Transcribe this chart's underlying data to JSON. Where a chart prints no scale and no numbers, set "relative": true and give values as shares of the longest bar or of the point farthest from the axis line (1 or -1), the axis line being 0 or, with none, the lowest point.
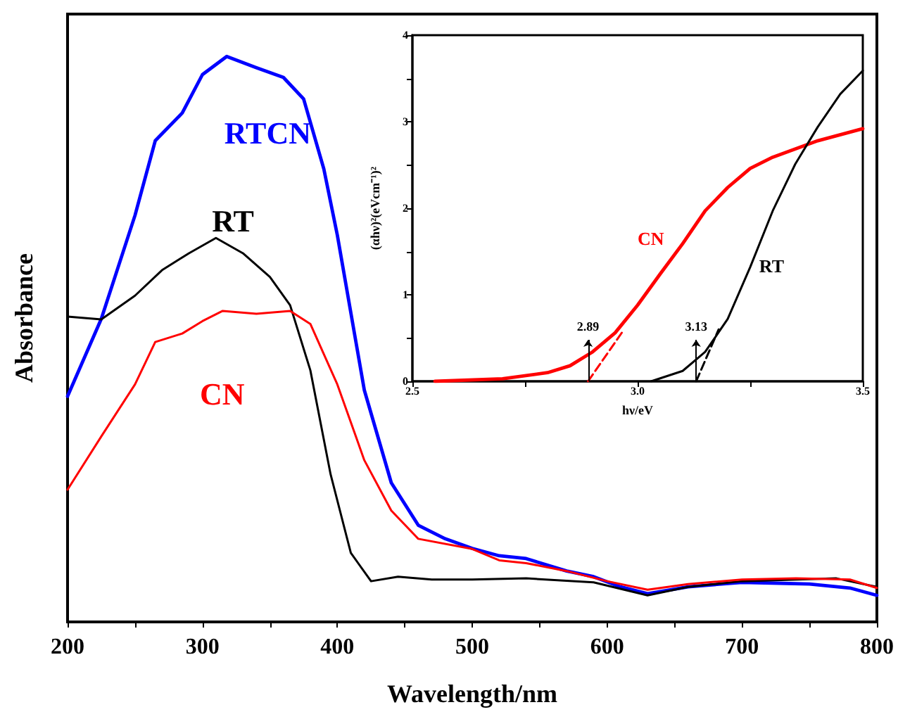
{
  "chart_data": [
    {
      "type": "line",
      "xlabel": "Wavelength/nm",
      "ylabel": "Absorbance",
      "relative": true,
      "tick_labels": "x",
      "xlim": [
        200,
        800
      ],
      "xticks": [
        200,
        {
          "value": 250,
          "label": null
        },
        300,
        {
          "value": 350,
          "label": null
        },
        400,
        {
          "value": 450,
          "label": null
        },
        500,
        {
          "value": 550,
          "label": null
        },
        600,
        {
          "value": 650,
          "label": null
        },
        700,
        {
          "value": 750,
          "label": null
        },
        800
      ],
      "legend": false,
      "marker": "none",
      "series": [
        {
          "name": "RTCN",
          "color": "#0000ff",
          "x": [
            200,
            225,
            250,
            265,
            285,
            300,
            318,
            340,
            360,
            375,
            390,
            400,
            420,
            440,
            460,
            480,
            500,
            520,
            540,
            570,
            590,
            610,
            630,
            660,
            700,
            750,
            780,
            800
          ],
          "values": [
            0.399,
            0.536,
            0.719,
            0.851,
            0.9,
            0.968,
            1,
            0.98,
            0.963,
            0.925,
            0.801,
            0.684,
            0.41,
            0.246,
            0.171,
            0.147,
            0.13,
            0.117,
            0.112,
            0.09,
            0.08,
            0.062,
            0.05,
            0.062,
            0.07,
            0.067,
            0.06,
            0.047
          ]
        },
        {
          "name": "RT",
          "color": "#000000",
          "x": [
            200,
            225,
            250,
            270,
            290,
            310,
            330,
            350,
            365,
            380,
            395,
            410,
            425,
            445,
            470,
            500,
            540,
            590,
            630,
            660,
            700,
            770,
            800
          ],
          "values": [
            0.54,
            0.535,
            0.577,
            0.622,
            0.652,
            0.679,
            0.652,
            0.61,
            0.56,
            0.445,
            0.261,
            0.122,
            0.072,
            0.08,
            0.075,
            0.075,
            0.077,
            0.07,
            0.047,
            0.062,
            0.072,
            0.077,
            0.062
          ]
        },
        {
          "name": "CN",
          "color": "#ff0000",
          "x": [
            200,
            225,
            250,
            265,
            285,
            300,
            315,
            340,
            365,
            380,
            400,
            420,
            440,
            460,
            500,
            520,
            540,
            570,
            600,
            630,
            660,
            700,
            740,
            780,
            800
          ],
          "values": [
            0.234,
            0.328,
            0.42,
            0.495,
            0.51,
            0.532,
            0.55,
            0.545,
            0.55,
            0.527,
            0.42,
            0.286,
            0.197,
            0.147,
            0.129,
            0.109,
            0.104,
            0.09,
            0.072,
            0.057,
            0.067,
            0.075,
            0.077,
            0.075,
            0.06
          ]
        }
      ]
    },
    {
      "type": "line",
      "xlabel": "hν/eV",
      "ylabel": "(αhν)²(eVcm⁻¹)²",
      "xlim": [
        2.5,
        3.5
      ],
      "xticks": [
        2.5,
        {
          "value": 2.75,
          "label": null
        },
        {
          "value": 3,
          "label": "3.0"
        },
        {
          "value": 3.25,
          "label": null
        },
        3.5
      ],
      "ylim": [
        0,
        4
      ],
      "yticks": [
        0,
        {
          "value": 0.5,
          "label": null
        },
        1,
        {
          "value": 1.5,
          "label": null
        },
        2,
        {
          "value": 2.5,
          "label": null
        },
        3,
        {
          "value": 3.5,
          "label": null
        },
        4
      ],
      "legend": false,
      "marker": "none",
      "annotations": [
        {
          "text": "2.89",
          "x": 2.89,
          "y": 0
        },
        {
          "text": "3.13",
          "x": 3.13,
          "y": 0
        }
      ],
      "series": [
        {
          "name": "CN",
          "color": "#ff0000",
          "x": [
            2.55,
            2.7,
            2.8,
            2.85,
            2.9,
            2.95,
            3.0,
            3.05,
            3.1,
            3.15,
            3.2,
            3.25,
            3.3,
            3.4,
            3.5
          ],
          "values": [
            0,
            0.03,
            0.1,
            0.18,
            0.34,
            0.56,
            0.88,
            1.24,
            1.59,
            1.97,
            2.24,
            2.46,
            2.59,
            2.78,
            2.92
          ]
        },
        {
          "name": "RT",
          "color": "#000000",
          "x": [
            3.03,
            3.1,
            3.15,
            3.2,
            3.25,
            3.3,
            3.35,
            3.4,
            3.45,
            3.5
          ],
          "values": [
            0,
            0.12,
            0.34,
            0.72,
            1.32,
            1.97,
            2.51,
            2.94,
            3.32,
            3.59
          ]
        },
        {
          "color": "#ff0000",
          "line_style": "dashed",
          "x": [
            2.89,
            2.97
          ],
          "values": [
            0,
            0.6
          ]
        },
        {
          "color": "#000000",
          "line_style": "dashed",
          "x": [
            3.13,
            3.18
          ],
          "values": [
            0,
            0.6
          ]
        }
      ]
    }
  ]
}
